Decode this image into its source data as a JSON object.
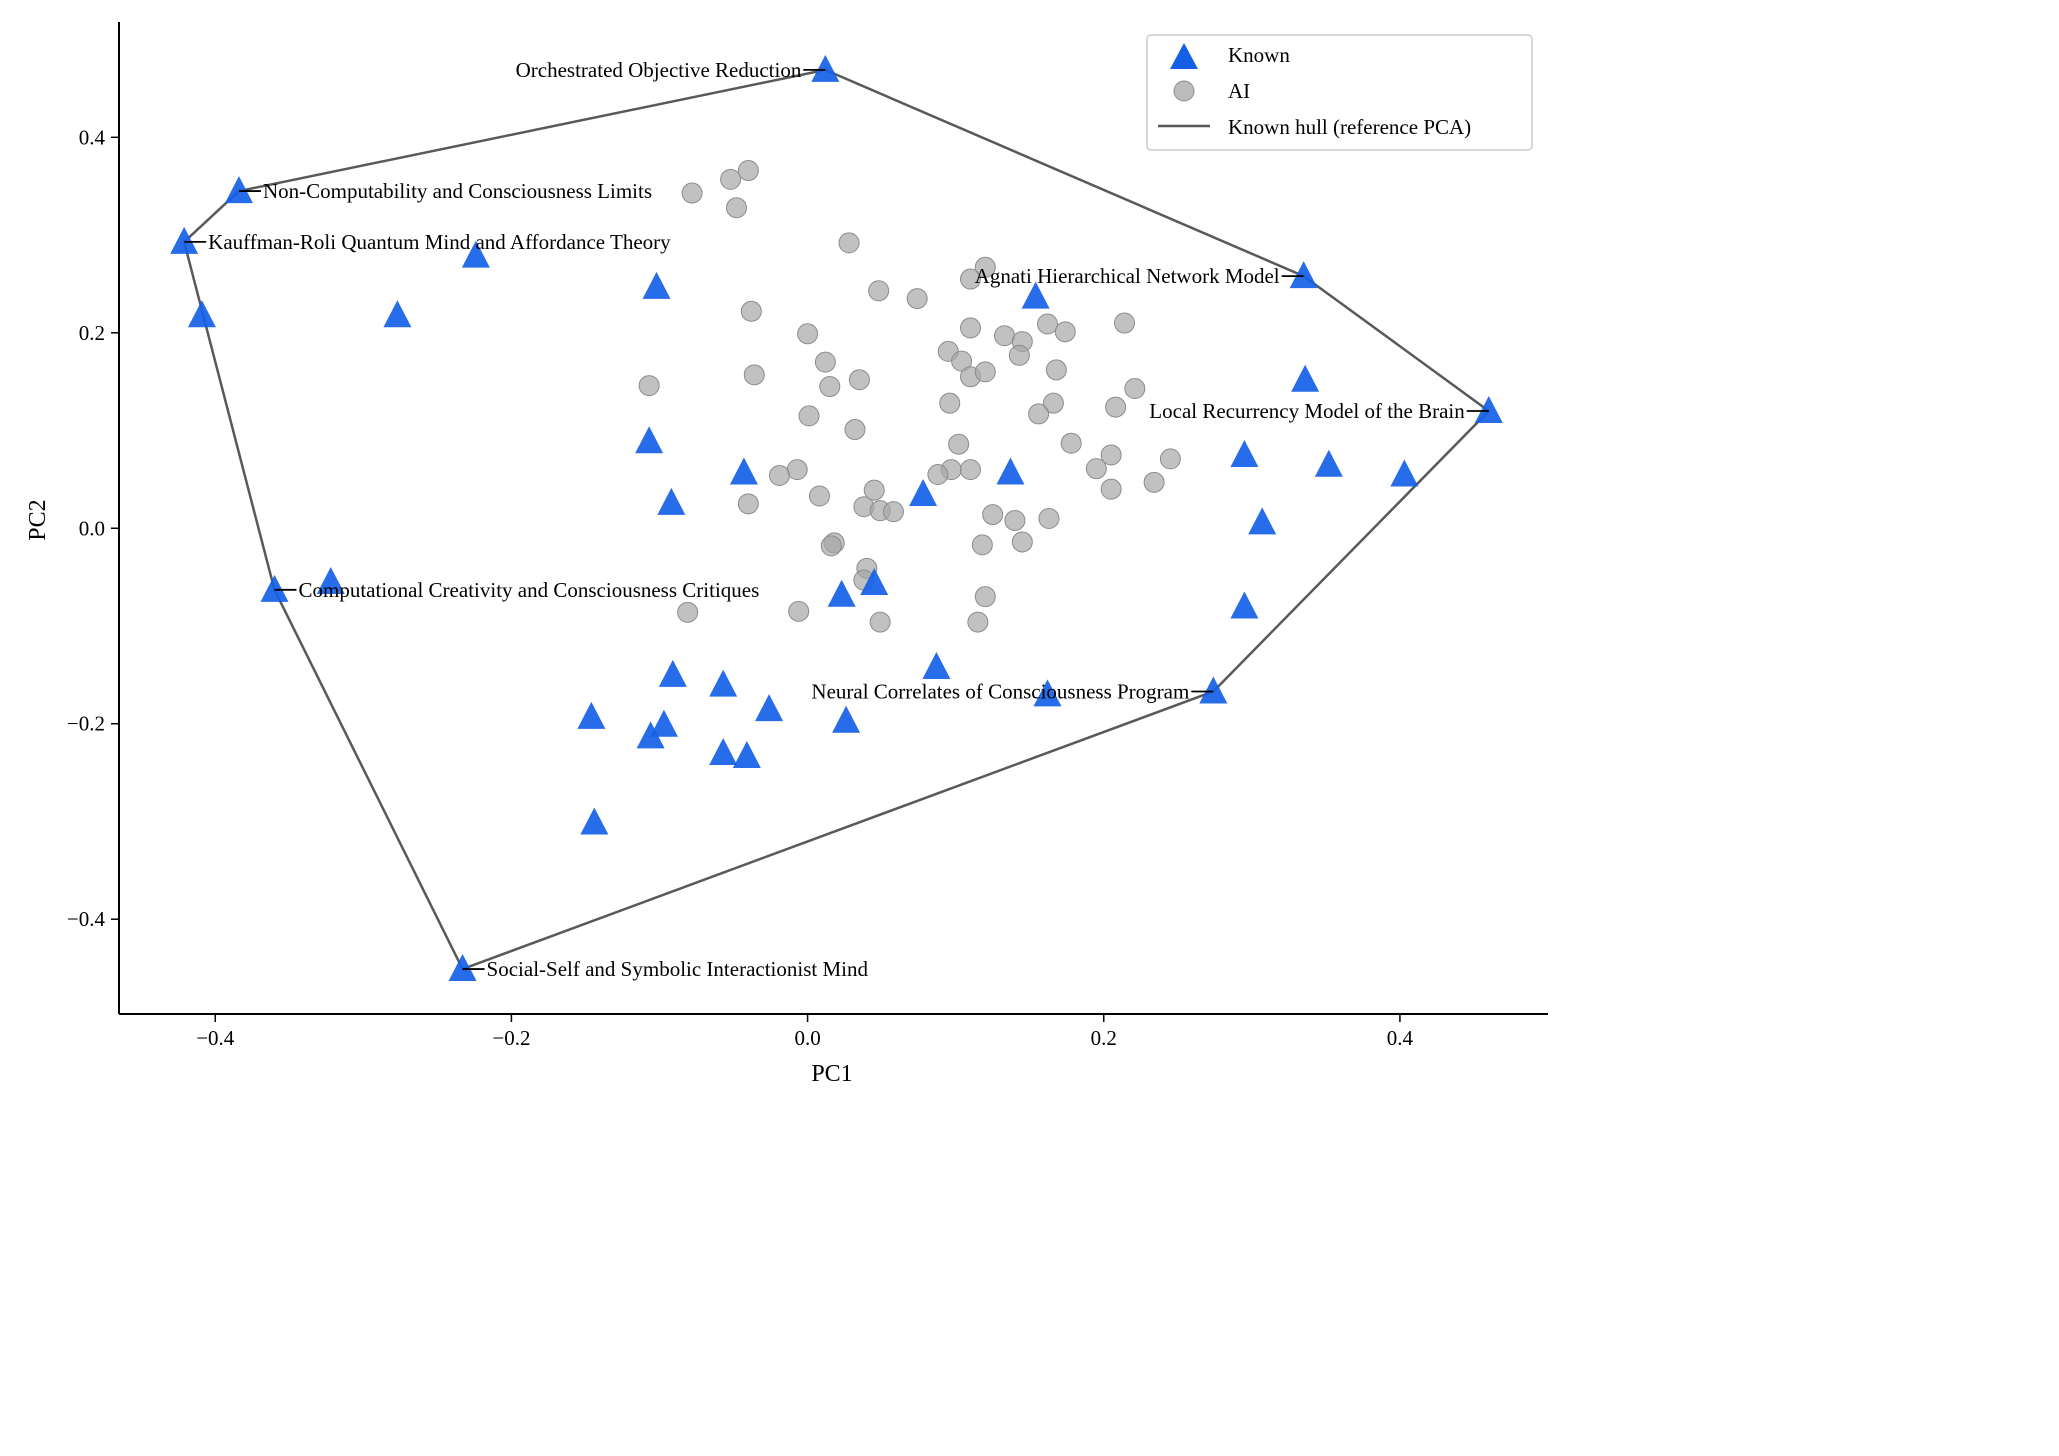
{
  "chart_data": {
    "type": "scatter",
    "xlabel": "PC1",
    "ylabel": "PC2",
    "xlim": [
      -0.465,
      0.5
    ],
    "ylim": [
      -0.497,
      0.518
    ],
    "xticks": [
      -0.4,
      -0.2,
      0.0,
      0.2,
      0.4
    ],
    "xtick_labels": [
      "−0.4",
      "−0.2",
      "0.0",
      "0.2",
      "0.4"
    ],
    "yticks": [
      -0.4,
      -0.2,
      0.0,
      0.2,
      0.4
    ],
    "ytick_labels": [
      "−0.4",
      "−0.2",
      "0.0",
      "0.2",
      "0.4"
    ],
    "grid": false,
    "legend_position": "top-right",
    "legend": [
      {
        "label": "Known",
        "marker": "triangle",
        "color": "#1560e6"
      },
      {
        "label": "AI",
        "marker": "circle",
        "color": "#a6a6a6"
      },
      {
        "label": "Known hull (reference PCA)",
        "marker": "line",
        "color": "#595959"
      }
    ],
    "series": [
      {
        "name": "Known",
        "marker": "triangle",
        "color": "#1560e6",
        "points": [
          [
            0.012,
            0.469
          ],
          [
            -0.384,
            0.345
          ],
          [
            -0.421,
            0.293
          ],
          [
            -0.224,
            0.279
          ],
          [
            -0.409,
            0.218
          ],
          [
            -0.277,
            0.218
          ],
          [
            -0.102,
            0.247
          ],
          [
            0.154,
            0.237
          ],
          [
            0.335,
            0.258
          ],
          [
            0.336,
            0.152
          ],
          [
            0.46,
            0.12
          ],
          [
            -0.107,
            0.089
          ],
          [
            -0.043,
            0.057
          ],
          [
            -0.092,
            0.026
          ],
          [
            0.078,
            0.035
          ],
          [
            0.137,
            0.057
          ],
          [
            0.295,
            0.075
          ],
          [
            0.352,
            0.065
          ],
          [
            0.403,
            0.055
          ],
          [
            0.307,
            0.006
          ],
          [
            -0.36,
            -0.063
          ],
          [
            -0.322,
            -0.055
          ],
          [
            0.023,
            -0.068
          ],
          [
            0.045,
            -0.056
          ],
          [
            0.295,
            -0.08
          ],
          [
            -0.091,
            -0.15
          ],
          [
            -0.057,
            -0.16
          ],
          [
            0.087,
            -0.142
          ],
          [
            0.162,
            -0.17
          ],
          [
            0.274,
            -0.167
          ],
          [
            -0.146,
            -0.193
          ],
          [
            -0.106,
            -0.213
          ],
          [
            -0.097,
            -0.201
          ],
          [
            -0.026,
            -0.185
          ],
          [
            0.026,
            -0.197
          ],
          [
            -0.057,
            -0.23
          ],
          [
            -0.041,
            -0.233
          ],
          [
            -0.144,
            -0.301
          ],
          [
            -0.233,
            -0.451
          ]
        ]
      },
      {
        "name": "AI",
        "marker": "circle",
        "color": "#a6a6a6",
        "points": [
          [
            -0.052,
            0.357
          ],
          [
            -0.04,
            0.366
          ],
          [
            -0.078,
            0.343
          ],
          [
            -0.048,
            0.328
          ],
          [
            0.028,
            0.292
          ],
          [
            0.12,
            0.267
          ],
          [
            0.11,
            0.255
          ],
          [
            0.048,
            0.243
          ],
          [
            0.074,
            0.235
          ],
          [
            -0.038,
            0.222
          ],
          [
            0.0,
            0.199
          ],
          [
            0.11,
            0.205
          ],
          [
            0.133,
            0.197
          ],
          [
            0.145,
            0.191
          ],
          [
            0.162,
            0.209
          ],
          [
            0.174,
            0.201
          ],
          [
            0.214,
            0.21
          ],
          [
            0.095,
            0.181
          ],
          [
            0.104,
            0.171
          ],
          [
            0.143,
            0.177
          ],
          [
            0.11,
            0.155
          ],
          [
            0.12,
            0.16
          ],
          [
            0.168,
            0.162
          ],
          [
            -0.036,
            0.157
          ],
          [
            -0.107,
            0.146
          ],
          [
            0.012,
            0.17
          ],
          [
            0.015,
            0.145
          ],
          [
            0.035,
            0.152
          ],
          [
            0.096,
            0.128
          ],
          [
            0.166,
            0.128
          ],
          [
            0.156,
            0.117
          ],
          [
            0.001,
            0.115
          ],
          [
            0.032,
            0.101
          ],
          [
            0.102,
            0.086
          ],
          [
            0.178,
            0.087
          ],
          [
            0.208,
            0.124
          ],
          [
            0.221,
            0.143
          ],
          [
            -0.007,
            0.06
          ],
          [
            -0.019,
            0.054
          ],
          [
            0.097,
            0.06
          ],
          [
            0.088,
            0.055
          ],
          [
            0.11,
            0.06
          ],
          [
            0.195,
            0.061
          ],
          [
            0.205,
            0.075
          ],
          [
            0.205,
            0.04
          ],
          [
            0.234,
            0.047
          ],
          [
            0.245,
            0.071
          ],
          [
            0.008,
            0.033
          ],
          [
            0.045,
            0.039
          ],
          [
            -0.04,
            0.025
          ],
          [
            0.038,
            0.022
          ],
          [
            0.049,
            0.018
          ],
          [
            0.058,
            0.017
          ],
          [
            0.125,
            0.014
          ],
          [
            0.14,
            0.008
          ],
          [
            0.163,
            0.01
          ],
          [
            0.018,
            -0.015
          ],
          [
            0.016,
            -0.018
          ],
          [
            0.118,
            -0.017
          ],
          [
            0.145,
            -0.014
          ],
          [
            0.04,
            -0.041
          ],
          [
            0.038,
            -0.053
          ],
          [
            -0.081,
            -0.086
          ],
          [
            -0.006,
            -0.085
          ],
          [
            0.12,
            -0.07
          ],
          [
            0.049,
            -0.096
          ],
          [
            0.115,
            -0.096
          ]
        ]
      }
    ],
    "hull": {
      "name": "Known hull (reference PCA)",
      "color": "#595959",
      "points": [
        [
          0.012,
          0.469
        ],
        [
          0.335,
          0.258
        ],
        [
          0.46,
          0.12
        ],
        [
          0.274,
          -0.167
        ],
        [
          -0.233,
          -0.451
        ],
        [
          -0.36,
          -0.063
        ],
        [
          -0.421,
          0.293
        ],
        [
          -0.384,
          0.345
        ]
      ]
    },
    "annotations": [
      {
        "text": "Orchestrated Objective Reduction",
        "x": 0.012,
        "y": 0.469,
        "side": "left"
      },
      {
        "text": "Non-Computability and Consciousness Limits",
        "x": -0.384,
        "y": 0.345,
        "side": "right"
      },
      {
        "text": "Kauffman-Roli Quantum Mind and Affordance Theory",
        "x": -0.421,
        "y": 0.293,
        "side": "right"
      },
      {
        "text": "Agnati Hierarchical Network Model",
        "x": 0.335,
        "y": 0.258,
        "side": "left"
      },
      {
        "text": "Local Recurrency Model of the Brain",
        "x": 0.46,
        "y": 0.12,
        "side": "left"
      },
      {
        "text": "Computational Creativity and Consciousness Critiques",
        "x": -0.36,
        "y": -0.063,
        "side": "right"
      },
      {
        "text": "Neural Correlates of Consciousness Program",
        "x": 0.274,
        "y": -0.167,
        "side": "left"
      },
      {
        "text": "Social-Self and Symbolic Interactionist Mind",
        "x": -0.233,
        "y": -0.451,
        "side": "right"
      }
    ]
  }
}
